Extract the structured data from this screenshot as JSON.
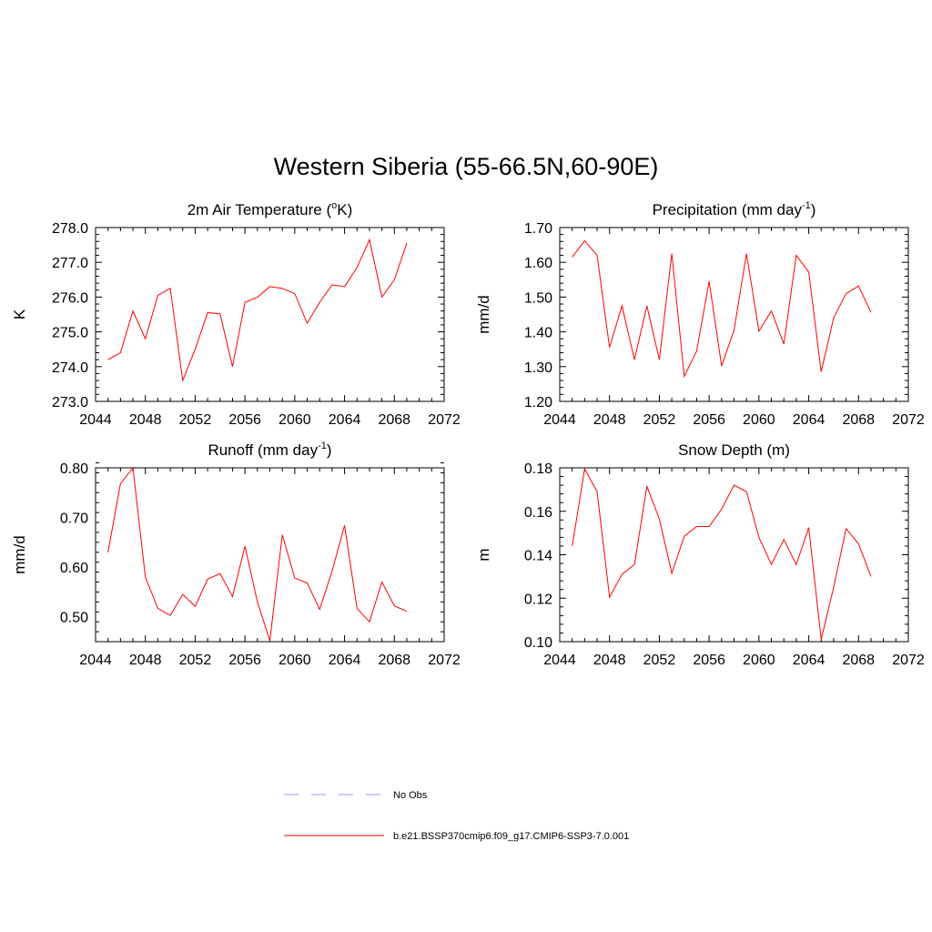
{
  "figure": {
    "title": "Western Siberia (55-66.5N,60-90E)"
  },
  "legend": {
    "position": "bottom-center",
    "entries": [
      {
        "label": "No Obs",
        "color": "#9999ff",
        "style": "dashed"
      },
      {
        "label": "b.e21.BSSP370cmip6.f09_g17.CMIP6-SSP3-7.0.001",
        "color": "#ff0000",
        "style": "solid"
      }
    ]
  },
  "chart_data": [
    {
      "type": "line",
      "title": "2m Air Temperature (",
      "title_sup": "o",
      "title_after": "K)",
      "title_sup2": "",
      "title_end": "",
      "xlabel": "",
      "ylabel": "K",
      "xlim": [
        2044,
        2072
      ],
      "ylim": [
        273.0,
        278.0
      ],
      "xticks": [
        2044,
        2048,
        2052,
        2056,
        2060,
        2064,
        2068,
        2072
      ],
      "yticks": [
        "273.0",
        "274.0",
        "275.0",
        "276.0",
        "277.0",
        "278.0"
      ],
      "yminor": 0.2,
      "grid": false,
      "series": [
        {
          "color": "#ff0000",
          "x": [
            2045,
            2046,
            2047,
            2048,
            2049,
            2050,
            2051,
            2052,
            2053,
            2054,
            2055,
            2056,
            2057,
            2058,
            2059,
            2060,
            2061,
            2062,
            2063,
            2064,
            2065,
            2066,
            2067,
            2068,
            2069
          ],
          "values": [
            274.2,
            274.4,
            275.6,
            274.8,
            276.05,
            276.25,
            273.6,
            274.5,
            275.55,
            275.52,
            274.0,
            275.85,
            276.0,
            276.3,
            276.25,
            276.1,
            275.25,
            275.85,
            276.35,
            276.3,
            276.85,
            277.65,
            276.0,
            276.5,
            277.55
          ]
        }
      ]
    },
    {
      "type": "line",
      "title": "Precipitation (mm day",
      "title_sup": "-1",
      "title_after": ")",
      "title_sup2": "",
      "title_end": "",
      "xlabel": "",
      "ylabel": "mm/d",
      "xlim": [
        2044,
        2072
      ],
      "ylim": [
        1.2,
        1.7
      ],
      "xticks": [
        2044,
        2048,
        2052,
        2056,
        2060,
        2064,
        2068,
        2072
      ],
      "yticks": [
        "1.20",
        "1.30",
        "1.40",
        "1.50",
        "1.60",
        "1.70"
      ],
      "yminor": 0.02,
      "grid": false,
      "series": [
        {
          "color": "#ff0000",
          "x": [
            2045,
            2046,
            2047,
            2048,
            2049,
            2050,
            2051,
            2052,
            2053,
            2054,
            2055,
            2056,
            2057,
            2058,
            2059,
            2060,
            2061,
            2062,
            2063,
            2064,
            2065,
            2066,
            2067,
            2068,
            2069
          ],
          "values": [
            1.615,
            1.662,
            1.62,
            1.355,
            1.475,
            1.32,
            1.475,
            1.32,
            1.625,
            1.272,
            1.345,
            1.545,
            1.302,
            1.405,
            1.625,
            1.402,
            1.46,
            1.365,
            1.62,
            1.572,
            1.285,
            1.44,
            1.51,
            1.532,
            1.456
          ]
        }
      ]
    },
    {
      "type": "line",
      "title": "Runoff (mm day",
      "title_sup": "-1",
      "title_after": ")",
      "title_sup2": "",
      "title_end": "",
      "xlabel": "",
      "ylabel": "mm/d",
      "xlim": [
        2044,
        2072
      ],
      "ylim": [
        0.45,
        0.8
      ],
      "xticks": [
        2044,
        2048,
        2052,
        2056,
        2060,
        2064,
        2068,
        2072
      ],
      "yticks": [
        "0.50",
        "0.60",
        "0.70",
        "0.80"
      ],
      "yticks_at": [
        0.5,
        0.6,
        0.7,
        0.8
      ],
      "yminor": 0.02,
      "grid": false,
      "series": [
        {
          "color": "#ff0000",
          "x": [
            2045,
            2046,
            2047,
            2048,
            2049,
            2050,
            2051,
            2052,
            2053,
            2054,
            2055,
            2056,
            2057,
            2058,
            2059,
            2060,
            2061,
            2062,
            2063,
            2064,
            2065,
            2066,
            2067,
            2068,
            2069
          ],
          "values": [
            0.63,
            0.768,
            0.8,
            0.58,
            0.517,
            0.503,
            0.545,
            0.521,
            0.576,
            0.587,
            0.541,
            0.642,
            0.53,
            0.452,
            0.665,
            0.578,
            0.568,
            0.515,
            0.592,
            0.684,
            0.517,
            0.49,
            0.57,
            0.522,
            0.511
          ]
        }
      ]
    },
    {
      "type": "line",
      "title": "Snow Depth (m)",
      "title_sup": "",
      "title_after": "",
      "title_sup2": "",
      "title_end": "",
      "xlabel": "",
      "ylabel": "m",
      "xlim": [
        2044,
        2072
      ],
      "ylim": [
        0.1,
        0.18
      ],
      "xticks": [
        2044,
        2048,
        2052,
        2056,
        2060,
        2064,
        2068,
        2072
      ],
      "yticks": [
        "0.10",
        "0.12",
        "0.14",
        "0.16",
        "0.18"
      ],
      "yminor": 0.004,
      "grid": false,
      "series": [
        {
          "color": "#ff0000",
          "x": [
            2045,
            2046,
            2047,
            2048,
            2049,
            2050,
            2051,
            2052,
            2053,
            2054,
            2055,
            2056,
            2057,
            2058,
            2059,
            2060,
            2061,
            2062,
            2063,
            2064,
            2065,
            2066,
            2067,
            2068,
            2069
          ],
          "values": [
            0.144,
            0.1795,
            0.169,
            0.1205,
            0.131,
            0.1355,
            0.1715,
            0.1565,
            0.1315,
            0.1485,
            0.153,
            0.153,
            0.161,
            0.172,
            0.169,
            0.148,
            0.1355,
            0.147,
            0.1355,
            0.1525,
            0.101,
            0.125,
            0.152,
            0.145,
            0.13
          ]
        }
      ]
    }
  ]
}
